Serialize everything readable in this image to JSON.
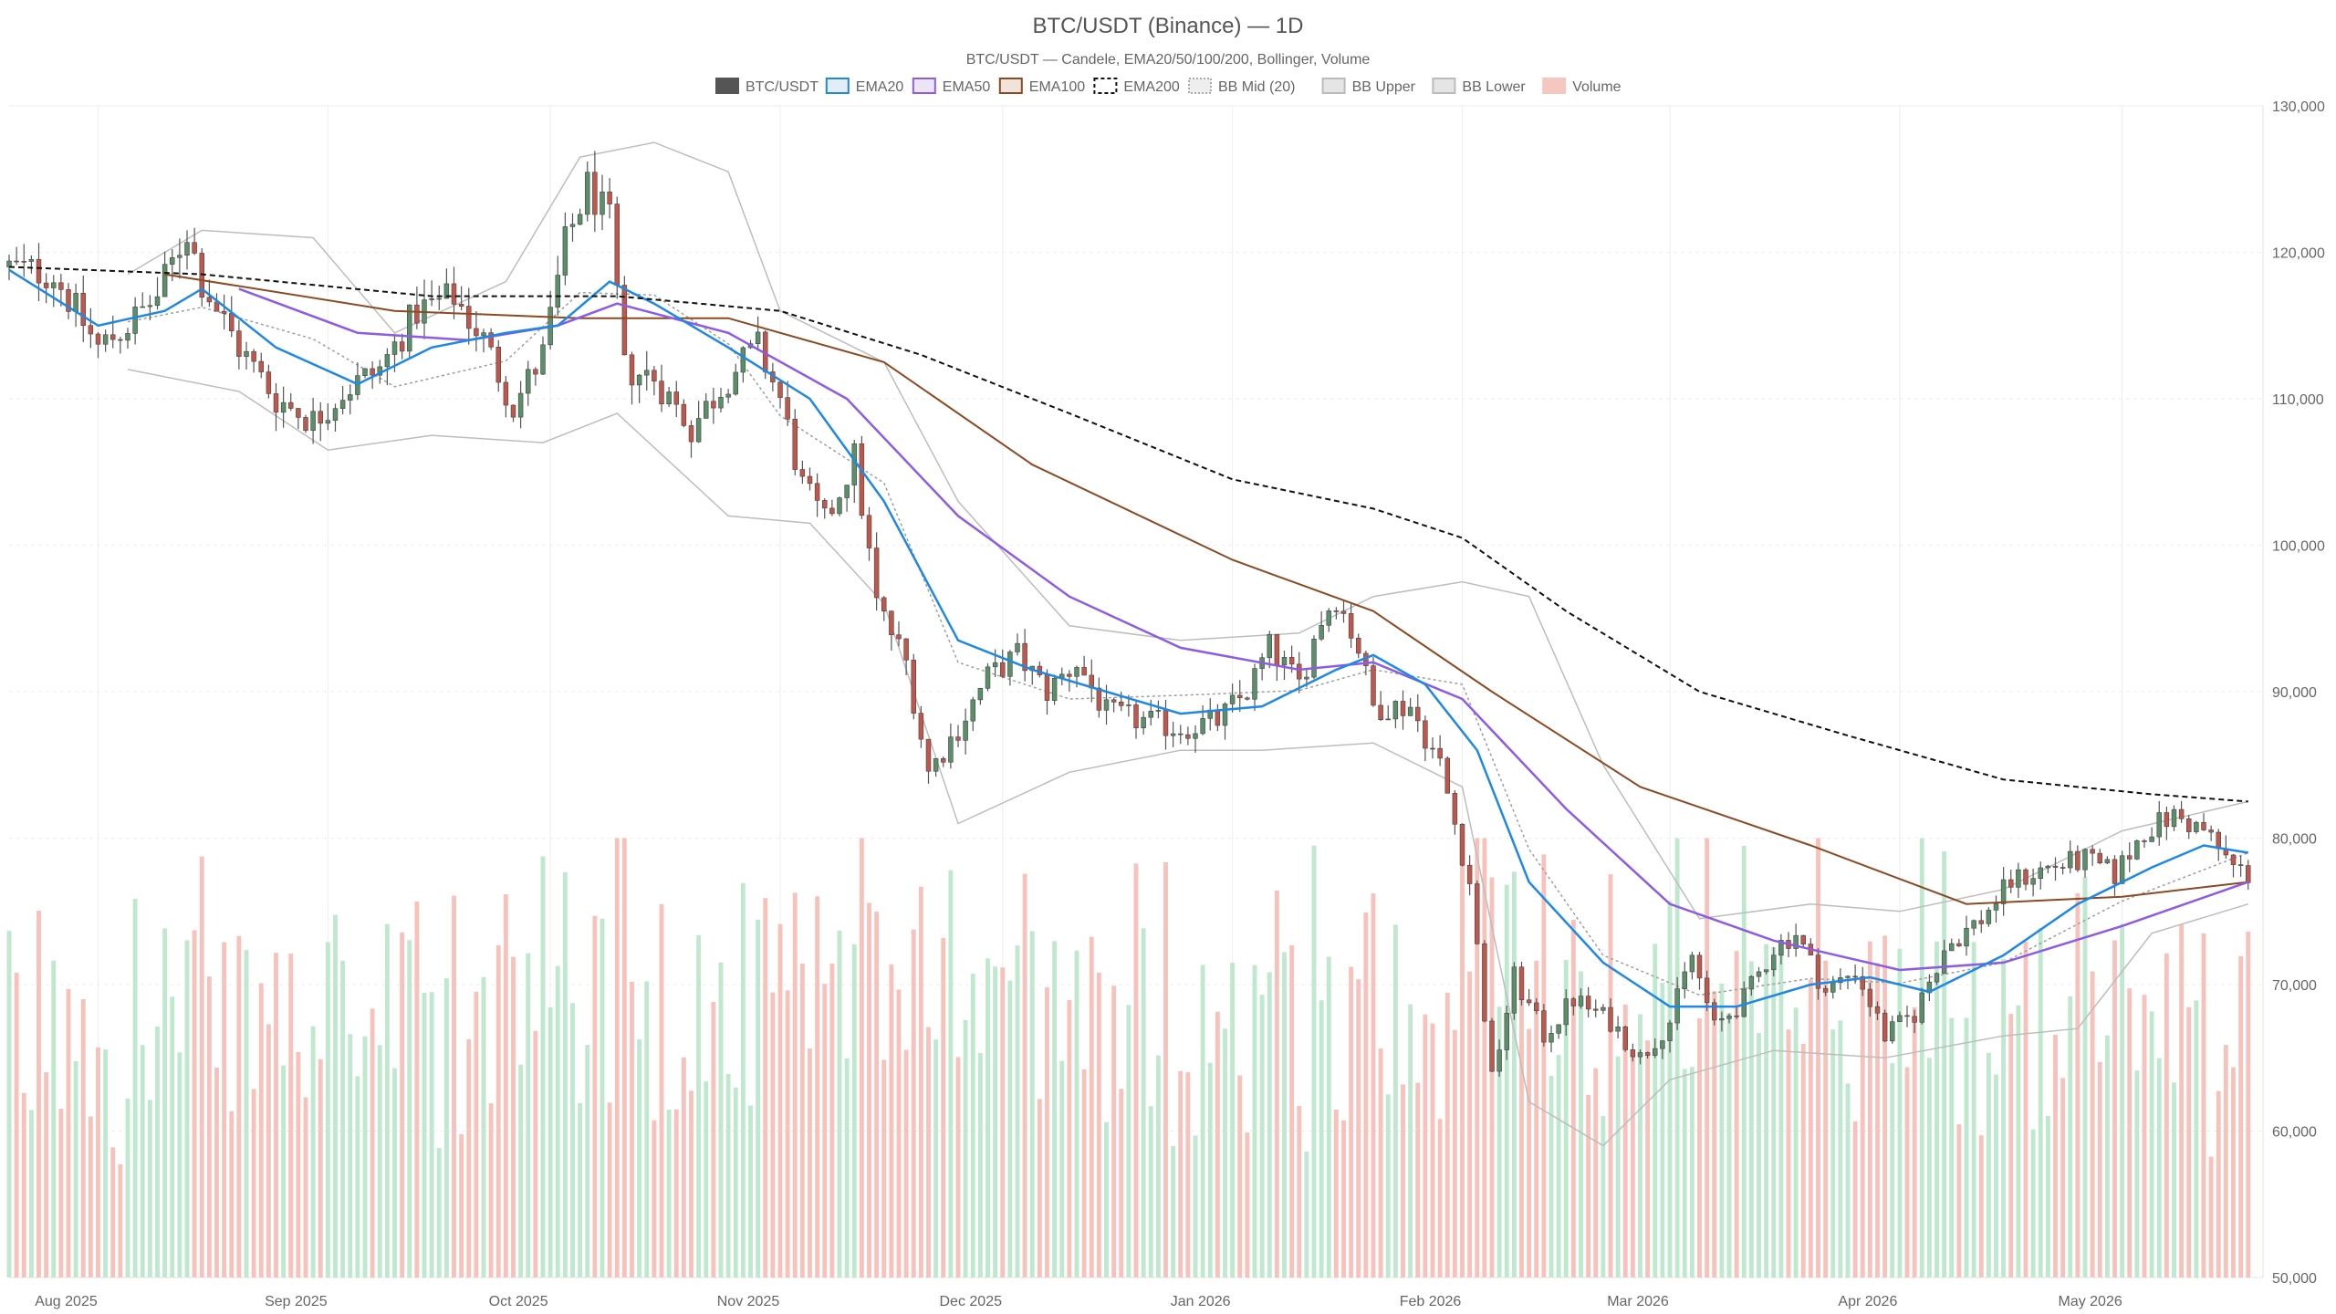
{
  "chart_data": {
    "type": "candlestick",
    "title": "BTC/USDT (Binance) — 1D",
    "subtitle": "BTC/USDT — Candele, EMA20/50/100/200, Bollinger, Volume",
    "legend": [
      {
        "label": "BTC/USDT",
        "color": "#555555",
        "style": "solid"
      },
      {
        "label": "EMA20",
        "color": "#1e88e5",
        "style": "line"
      },
      {
        "label": "EMA50",
        "color": "#8e5be5",
        "style": "line"
      },
      {
        "label": "EMA100",
        "color": "#8b4a22",
        "style": "line"
      },
      {
        "label": "EMA200",
        "color": "#111111",
        "style": "dashed"
      },
      {
        "label": "BB Mid (20)",
        "color": "#999999",
        "style": "dotted"
      },
      {
        "label": "BB Upper",
        "color": "#bbbbbb",
        "style": "line"
      },
      {
        "label": "BB Lower",
        "color": "#bbbbbb",
        "style": "line"
      },
      {
        "label": "Volume",
        "color": "#f4a9a0",
        "style": "solid"
      }
    ],
    "y_axis": {
      "min": 50000,
      "max": 130000,
      "position": "right",
      "ticks": [
        "50,000",
        "60,000",
        "70,000",
        "80,000",
        "90,000",
        "100,000",
        "110,000",
        "120,000",
        "130,000"
      ]
    },
    "x_axis": {
      "start": "2025-07-20",
      "end": "2026-05-20",
      "ticks": [
        {
          "label": "Aug 2025",
          "date": "2025-08-01"
        },
        {
          "label": "Sep 2025",
          "date": "2025-09-01"
        },
        {
          "label": "Oct 2025",
          "date": "2025-10-01"
        },
        {
          "label": "Nov 2025",
          "date": "2025-11-01"
        },
        {
          "label": "Dec 2025",
          "date": "2025-12-01"
        },
        {
          "label": "Jan 2026",
          "date": "2026-01-01"
        },
        {
          "label": "Feb 2026",
          "date": "2026-02-01"
        },
        {
          "label": "Mar 2026",
          "date": "2026-03-01"
        },
        {
          "label": "Apr 2026",
          "date": "2026-04-01"
        },
        {
          "label": "May 2026",
          "date": "2026-05-01"
        }
      ]
    },
    "grid": true,
    "colors": {
      "up": "#5a8f69",
      "down": "#c0574d",
      "vol_up": "#bfe8cf",
      "vol_down": "#f6c2bb"
    },
    "close_path": [
      [
        "2025-07-20",
        119000
      ],
      [
        "2025-07-26",
        118500
      ],
      [
        "2025-08-01",
        113500
      ],
      [
        "2025-08-05",
        115000
      ],
      [
        "2025-08-09",
        117000
      ],
      [
        "2025-08-13",
        121500
      ],
      [
        "2025-08-15",
        118000
      ],
      [
        "2025-08-20",
        113500
      ],
      [
        "2025-08-25",
        110000
      ],
      [
        "2025-08-30",
        108500
      ],
      [
        "2025-09-03",
        110500
      ],
      [
        "2025-09-08",
        112000
      ],
      [
        "2025-09-13",
        116000
      ],
      [
        "2025-09-18",
        117000
      ],
      [
        "2025-09-22",
        114000
      ],
      [
        "2025-09-26",
        109500
      ],
      [
        "2025-09-30",
        113000
      ],
      [
        "2025-10-03",
        120500
      ],
      [
        "2025-10-06",
        124500
      ],
      [
        "2025-10-09",
        122000
      ],
      [
        "2025-10-11",
        112000
      ],
      [
        "2025-10-15",
        111500
      ],
      [
        "2025-10-20",
        108000
      ],
      [
        "2025-10-25",
        111500
      ],
      [
        "2025-10-29",
        113500
      ],
      [
        "2025-11-01",
        110000
      ],
      [
        "2025-11-04",
        104000
      ],
      [
        "2025-11-07",
        101500
      ],
      [
        "2025-11-11",
        106000
      ],
      [
        "2025-11-14",
        96000
      ],
      [
        "2025-11-18",
        92000
      ],
      [
        "2025-11-21",
        84500
      ],
      [
        "2025-11-25",
        87500
      ],
      [
        "2025-11-29",
        91000
      ],
      [
        "2025-12-03",
        92500
      ],
      [
        "2025-12-07",
        90000
      ],
      [
        "2025-12-11",
        92000
      ],
      [
        "2025-12-15",
        88500
      ],
      [
        "2025-12-20",
        88000
      ],
      [
        "2025-12-25",
        87500
      ],
      [
        "2025-12-30",
        88000
      ],
      [
        "2026-01-03",
        90000
      ],
      [
        "2026-01-06",
        93000
      ],
      [
        "2026-01-10",
        90500
      ],
      [
        "2026-01-13",
        95000
      ],
      [
        "2026-01-15",
        96500
      ],
      [
        "2026-01-18",
        93000
      ],
      [
        "2026-01-20",
        89000
      ],
      [
        "2026-01-25",
        89000
      ],
      [
        "2026-01-29",
        85000
      ],
      [
        "2026-02-02",
        77000
      ],
      [
        "2026-02-05",
        63500
      ],
      [
        "2026-02-08",
        70500
      ],
      [
        "2026-02-12",
        66500
      ],
      [
        "2026-02-16",
        69000
      ],
      [
        "2026-02-21",
        67500
      ],
      [
        "2026-02-25",
        65000
      ],
      [
        "2026-03-01",
        67500
      ],
      [
        "2026-03-04",
        72000
      ],
      [
        "2026-03-07",
        67000
      ],
      [
        "2026-03-11",
        69000
      ],
      [
        "2026-03-15",
        72500
      ],
      [
        "2026-03-18",
        73500
      ],
      [
        "2026-03-22",
        69500
      ],
      [
        "2026-03-26",
        71000
      ],
      [
        "2026-03-30",
        66500
      ],
      [
        "2026-04-03",
        68000
      ],
      [
        "2026-04-07",
        72500
      ],
      [
        "2026-04-12",
        74500
      ],
      [
        "2026-04-16",
        77000
      ],
      [
        "2026-04-21",
        78000
      ],
      [
        "2026-04-26",
        78500
      ],
      [
        "2026-04-30",
        77500
      ],
      [
        "2026-05-04",
        80500
      ],
      [
        "2026-05-08",
        81500
      ],
      [
        "2026-05-12",
        80500
      ],
      [
        "2026-05-16",
        78000
      ],
      [
        "2026-05-18",
        77500
      ]
    ],
    "ema20": [
      [
        "2025-07-20",
        118800
      ],
      [
        "2025-08-01",
        115000
      ],
      [
        "2025-08-10",
        116000
      ],
      [
        "2025-08-15",
        117500
      ],
      [
        "2025-08-25",
        113500
      ],
      [
        "2025-09-05",
        111000
      ],
      [
        "2025-09-15",
        113500
      ],
      [
        "2025-09-25",
        114500
      ],
      [
        "2025-10-02",
        115000
      ],
      [
        "2025-10-09",
        118000
      ],
      [
        "2025-10-15",
        116500
      ],
      [
        "2025-10-25",
        113500
      ],
      [
        "2025-11-05",
        110000
      ],
      [
        "2025-11-15",
        103000
      ],
      [
        "2025-11-25",
        93500
      ],
      [
        "2025-12-05",
        91500
      ],
      [
        "2025-12-15",
        90000
      ],
      [
        "2025-12-25",
        88500
      ],
      [
        "2026-01-05",
        89000
      ],
      [
        "2026-01-15",
        91500
      ],
      [
        "2026-01-20",
        92500
      ],
      [
        "2026-01-27",
        90500
      ],
      [
        "2026-02-03",
        86000
      ],
      [
        "2026-02-10",
        77000
      ],
      [
        "2026-02-20",
        71500
      ],
      [
        "2026-03-01",
        68500
      ],
      [
        "2026-03-10",
        68500
      ],
      [
        "2026-03-20",
        70000
      ],
      [
        "2026-03-28",
        70500
      ],
      [
        "2026-04-05",
        69500
      ],
      [
        "2026-04-15",
        72000
      ],
      [
        "2026-04-25",
        75500
      ],
      [
        "2026-05-05",
        78000
      ],
      [
        "2026-05-12",
        79500
      ],
      [
        "2026-05-18",
        79000
      ]
    ],
    "ema50": [
      [
        "2025-08-20",
        117500
      ],
      [
        "2025-09-05",
        114500
      ],
      [
        "2025-09-20",
        114000
      ],
      [
        "2025-10-02",
        115000
      ],
      [
        "2025-10-10",
        116500
      ],
      [
        "2025-10-25",
        114500
      ],
      [
        "2025-11-10",
        110000
      ],
      [
        "2025-11-25",
        102000
      ],
      [
        "2025-12-10",
        96500
      ],
      [
        "2025-12-25",
        93000
      ],
      [
        "2026-01-10",
        91500
      ],
      [
        "2026-01-20",
        92000
      ],
      [
        "2026-02-01",
        89500
      ],
      [
        "2026-02-15",
        82000
      ],
      [
        "2026-03-01",
        75500
      ],
      [
        "2026-03-15",
        73000
      ],
      [
        "2026-04-01",
        71000
      ],
      [
        "2026-04-15",
        71500
      ],
      [
        "2026-05-01",
        74000
      ],
      [
        "2026-05-18",
        77000
      ]
    ],
    "ema100": [
      [
        "2025-08-10",
        118500
      ],
      [
        "2025-09-10",
        116000
      ],
      [
        "2025-10-05",
        115500
      ],
      [
        "2025-10-25",
        115500
      ],
      [
        "2025-11-15",
        112500
      ],
      [
        "2025-12-05",
        105500
      ],
      [
        "2026-01-01",
        99000
      ],
      [
        "2026-01-20",
        95500
      ],
      [
        "2026-02-05",
        90000
      ],
      [
        "2026-02-25",
        83500
      ],
      [
        "2026-03-20",
        79500
      ],
      [
        "2026-04-10",
        75500
      ],
      [
        "2026-05-01",
        76000
      ],
      [
        "2026-05-18",
        77000
      ]
    ],
    "ema200": [
      [
        "2025-07-20",
        119000
      ],
      [
        "2025-08-15",
        118500
      ],
      [
        "2025-09-15",
        117000
      ],
      [
        "2025-10-10",
        117000
      ],
      [
        "2025-11-01",
        116000
      ],
      [
        "2025-11-20",
        113000
      ],
      [
        "2025-12-10",
        109000
      ],
      [
        "2026-01-01",
        104500
      ],
      [
        "2026-01-20",
        102500
      ],
      [
        "2026-02-01",
        100500
      ],
      [
        "2026-02-15",
        95500
      ],
      [
        "2026-03-05",
        90000
      ],
      [
        "2026-03-25",
        87000
      ],
      [
        "2026-04-15",
        84000
      ],
      [
        "2026-05-05",
        83000
      ],
      [
        "2026-05-18",
        82500
      ]
    ],
    "bb_upper": [
      [
        "2025-08-05",
        118500
      ],
      [
        "2025-08-15",
        121500
      ],
      [
        "2025-08-30",
        121000
      ],
      [
        "2025-09-10",
        114500
      ],
      [
        "2025-09-25",
        118000
      ],
      [
        "2025-10-05",
        126500
      ],
      [
        "2025-10-15",
        127500
      ],
      [
        "2025-10-25",
        125500
      ],
      [
        "2025-11-01",
        116000
      ],
      [
        "2025-11-15",
        112500
      ],
      [
        "2025-11-25",
        103000
      ],
      [
        "2025-12-10",
        94500
      ],
      [
        "2025-12-25",
        93500
      ],
      [
        "2026-01-10",
        94000
      ],
      [
        "2026-01-20",
        96500
      ],
      [
        "2026-02-01",
        97500
      ],
      [
        "2026-02-10",
        96500
      ],
      [
        "2026-02-20",
        85000
      ],
      [
        "2026-03-05",
        74500
      ],
      [
        "2026-03-20",
        75500
      ],
      [
        "2026-04-01",
        75000
      ],
      [
        "2026-04-15",
        76500
      ],
      [
        "2026-05-01",
        80500
      ],
      [
        "2026-05-18",
        82500
      ]
    ],
    "bb_lower": [
      [
        "2025-08-05",
        112000
      ],
      [
        "2025-08-20",
        110500
      ],
      [
        "2025-09-01",
        106500
      ],
      [
        "2025-09-15",
        107500
      ],
      [
        "2025-09-30",
        107000
      ],
      [
        "2025-10-10",
        109000
      ],
      [
        "2025-10-25",
        102000
      ],
      [
        "2025-11-05",
        101500
      ],
      [
        "2025-11-15",
        96000
      ],
      [
        "2025-11-25",
        81000
      ],
      [
        "2025-12-10",
        84500
      ],
      [
        "2025-12-25",
        86000
      ],
      [
        "2026-01-05",
        86000
      ],
      [
        "2026-01-20",
        86500
      ],
      [
        "2026-02-01",
        83500
      ],
      [
        "2026-02-10",
        62000
      ],
      [
        "2026-02-20",
        59000
      ],
      [
        "2026-03-01",
        63500
      ],
      [
        "2026-03-15",
        65500
      ],
      [
        "2026-03-30",
        65000
      ],
      [
        "2026-04-15",
        66500
      ],
      [
        "2026-04-25",
        67000
      ],
      [
        "2026-05-05",
        73500
      ],
      [
        "2026-05-18",
        75500
      ]
    ]
  }
}
